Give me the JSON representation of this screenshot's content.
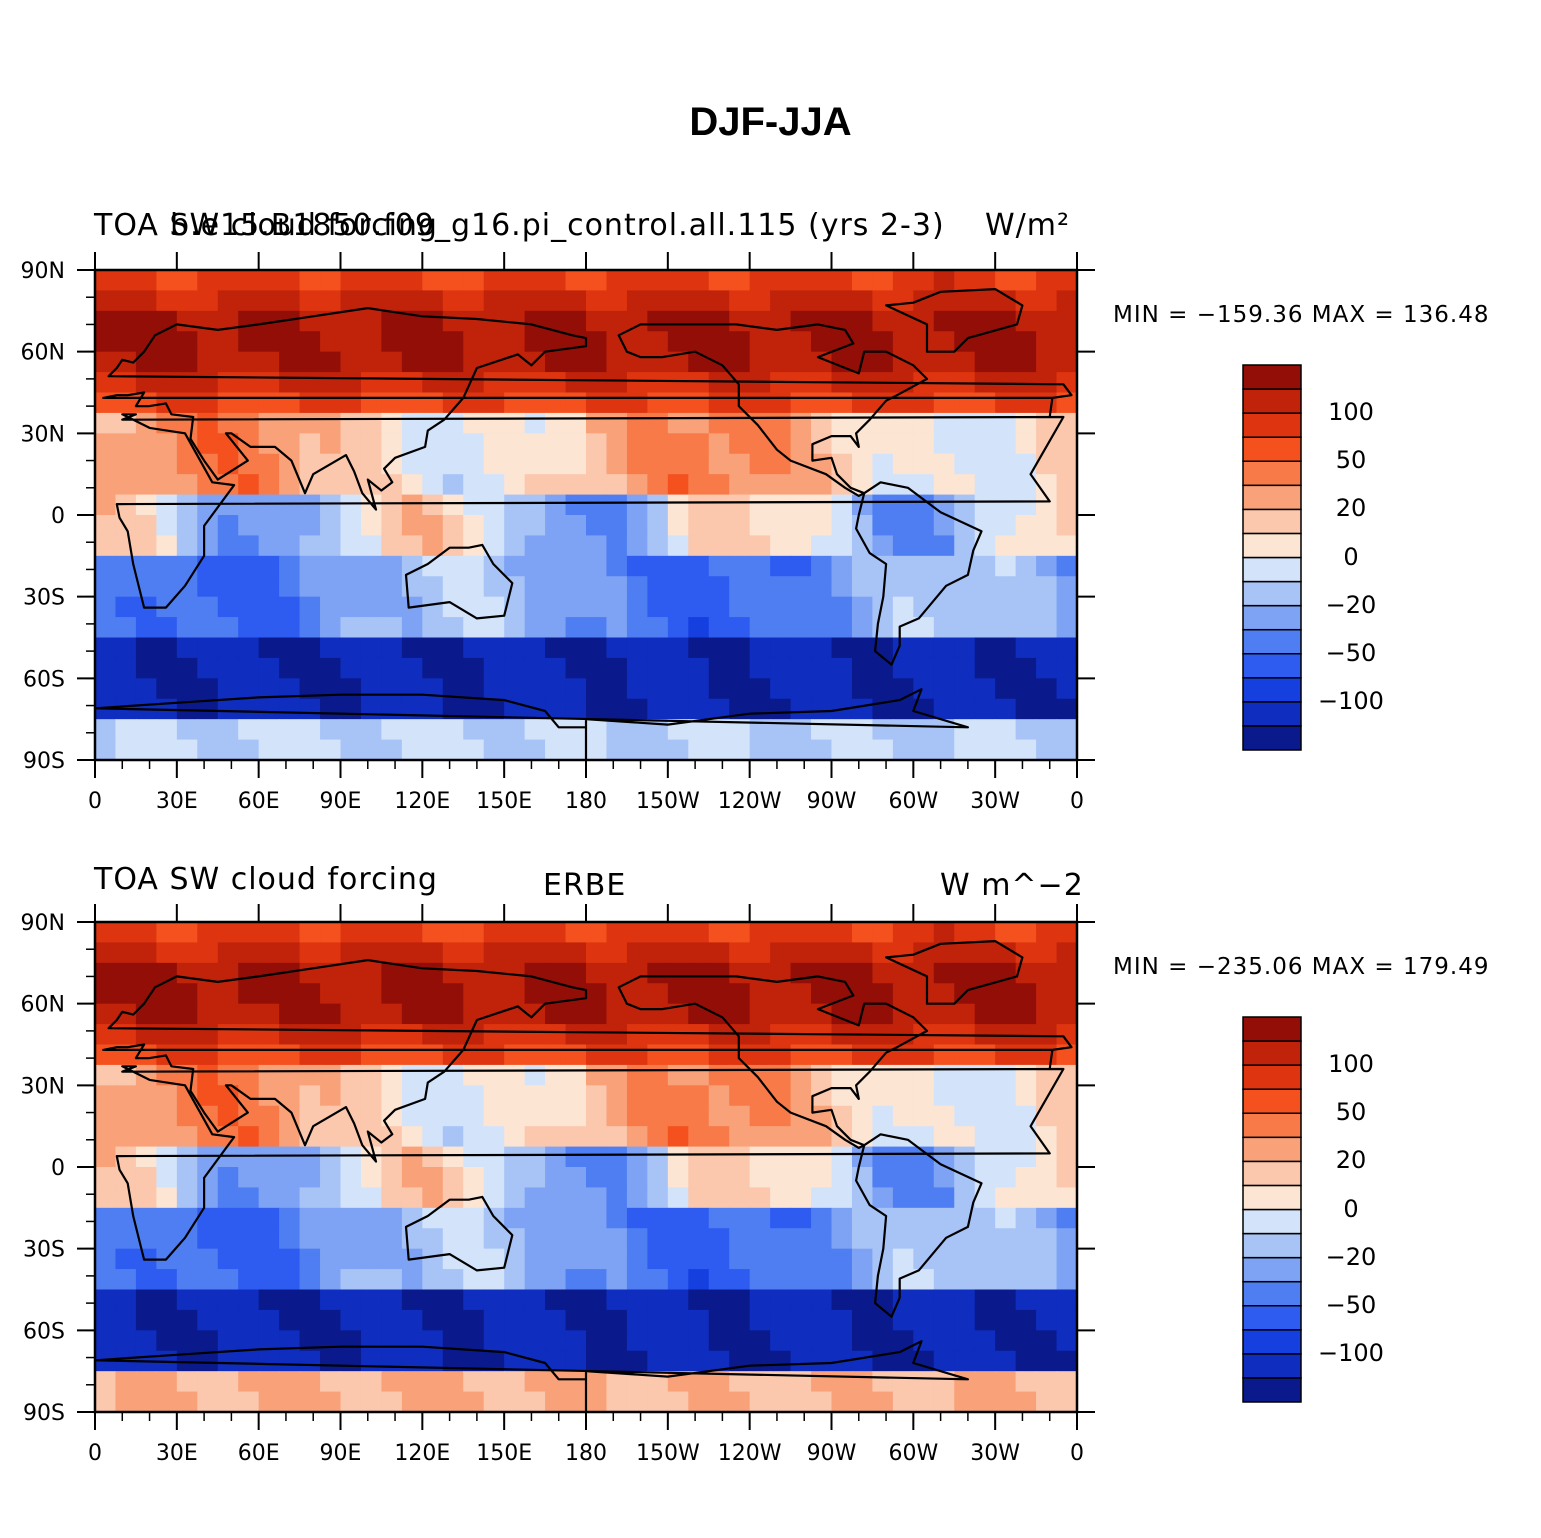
{
  "figure": {
    "title": "DJF-JJA"
  },
  "colors": {
    "levels": [
      "#0a1a8c",
      "#0f2dbf",
      "#163fe0",
      "#2e5cf0",
      "#4f7ef2",
      "#7ea3f5",
      "#a8c4f7",
      "#d3e4fa",
      "#fde5d4",
      "#fbc7ad",
      "#f9a27a",
      "#f77a48",
      "#f4511e",
      "#de3510",
      "#c0220a",
      "#920e06"
    ],
    "coast": "#000000",
    "missing": "#ffffff"
  },
  "axes": {
    "lat_ticks": [
      "90N",
      "60N",
      "30N",
      "0",
      "30S",
      "60S",
      "90S"
    ],
    "lon_ticks": [
      "0",
      "30E",
      "60E",
      "90E",
      "120E",
      "150E",
      "180",
      "150W",
      "120W",
      "90W",
      "60W",
      "30W",
      "0"
    ]
  },
  "colorbar": {
    "labels": [
      "100",
      "50",
      "20",
      "0",
      "−20",
      "−50",
      "−100"
    ]
  },
  "panels": [
    {
      "title_left": "TOA SW cloud forcing",
      "title_center": "b.e15.B1850.f09_g16.pi_control.all.115 (yrs 2-3)",
      "title_right": "W/m²",
      "min_max": "MIN = −159.36  MAX = 136.48"
    },
    {
      "title_left": "TOA SW cloud forcing",
      "title_center": "ERBE",
      "title_right": "W m^−2",
      "min_max": "MIN = −235.06  MAX = 179.49"
    }
  ]
}
